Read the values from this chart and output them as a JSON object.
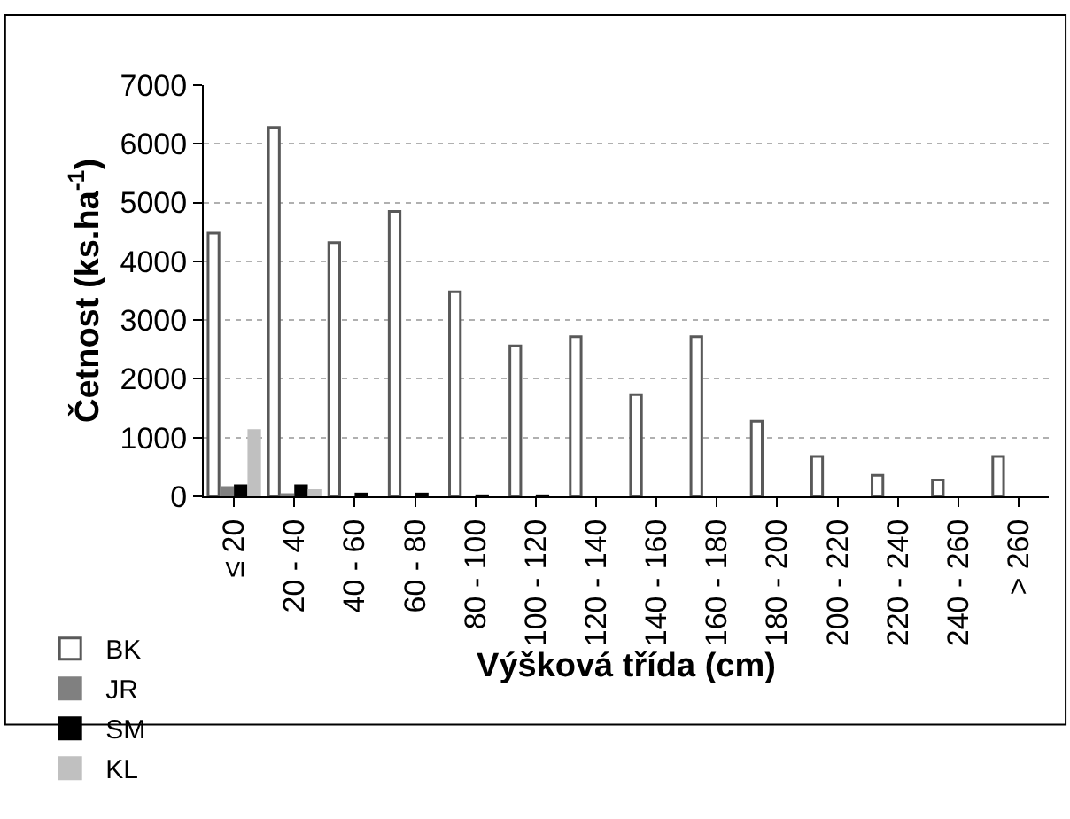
{
  "chart_data": {
    "type": "bar",
    "xlabel": "Výšková třída (cm)",
    "ylabel": "Četnost (ks.ha$^{-1}$)",
    "categories": [
      "≤ 20",
      "20 - 40",
      "40 - 60",
      "60 - 80",
      "80 - 100",
      "100 - 120",
      "120 - 140",
      "140 - 160",
      "160 - 180",
      "180 - 200",
      "200 - 220",
      "220 - 240",
      "240 - 260",
      "> 260"
    ],
    "series": [
      {
        "name": "BK",
        "color": "#ffffff",
        "values": [
          4480,
          6280,
          4320,
          4850,
          3480,
          2560,
          2720,
          1730,
          2720,
          1280,
          680,
          360,
          280,
          680
        ]
      },
      {
        "name": "JR",
        "color": "#808080",
        "values": [
          150,
          30,
          null,
          null,
          null,
          null,
          null,
          null,
          null,
          null,
          null,
          null,
          null,
          null
        ]
      },
      {
        "name": "SM",
        "color": "#000000",
        "values": [
          180,
          180,
          40,
          40,
          10,
          10,
          null,
          null,
          null,
          null,
          null,
          null,
          null,
          null
        ]
      },
      {
        "name": "KL",
        "color": "#c0c0c0",
        "values": [
          1120,
          100,
          null,
          null,
          null,
          null,
          null,
          null,
          null,
          null,
          null,
          null,
          null,
          null
        ]
      }
    ],
    "ylim": [
      0,
      7000
    ],
    "yticks": [
      0,
      1000,
      2000,
      3000,
      4000,
      5000,
      6000,
      7000
    ],
    "grid": "y",
    "legend": "bottom left"
  }
}
